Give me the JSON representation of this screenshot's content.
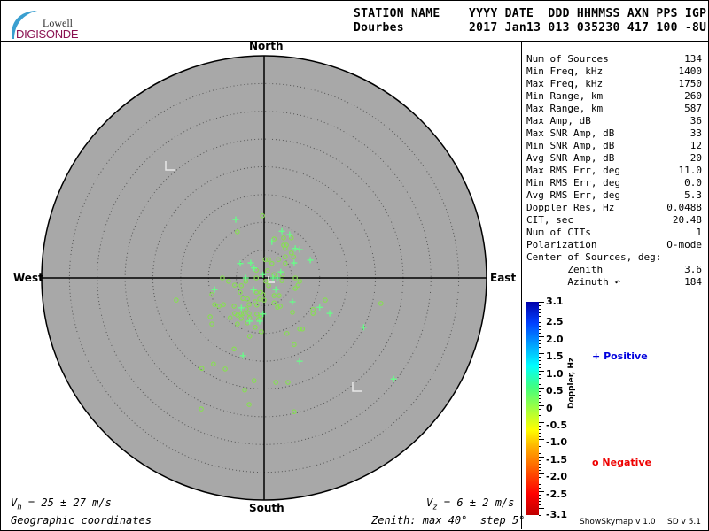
{
  "logo": {
    "top": "Lowell",
    "bottom": "DIGISONDE"
  },
  "header": {
    "labels": "STATION NAME    YYYY DATE  DDD HHMMSS AXN PPS IGP",
    "values": "Dourbes         2017 Jan13 013 035230 417 100 -8U"
  },
  "stats": [
    {
      "label": "Num of Sources",
      "value": "134"
    },
    {
      "label": "Min Freq, kHz",
      "value": "1400"
    },
    {
      "label": "Max Freq, kHz",
      "value": "1750"
    },
    {
      "label": "Min Range, km",
      "value": "260"
    },
    {
      "label": "Max Range, km",
      "value": "587"
    },
    {
      "label": "Max Amp, dB",
      "value": "36"
    },
    {
      "label": "Max SNR Amp, dB",
      "value": "33"
    },
    {
      "label": "Min SNR Amp, dB",
      "value": "12"
    },
    {
      "label": "Avg SNR Amp, dB",
      "value": "20"
    },
    {
      "label": "Max RMS Err, deg",
      "value": "11.0"
    },
    {
      "label": "Min RMS Err, deg",
      "value": "0.0"
    },
    {
      "label": "Avg RMS Err, deg",
      "value": "5.3"
    },
    {
      "label": "Doppler Res, Hz",
      "value": "0.0488"
    },
    {
      "label": "CIT, sec",
      "value": "20.48"
    },
    {
      "label": "Num of CITs",
      "value": "1"
    },
    {
      "label": "Polarization",
      "value": "O-mode"
    },
    {
      "label": "Center of Sources, deg:",
      "value": ""
    },
    {
      "label": "       Zenith",
      "value": "3.6"
    },
    {
      "label": "       Azimuth ↶",
      "value": "184"
    }
  ],
  "footer": {
    "vh": "= 25 ± 27 m/s",
    "vh_sym": "V",
    "vh_sub": "h",
    "vz": "= 6 ± 2 m/s",
    "vz_sym": "V",
    "vz_sub": "z",
    "coords": "Geographic coordinates",
    "zenith": "Zenith: max 40°  step 5°",
    "version1": "ShowSkymap v 1.0",
    "version2": "SD v 5.1"
  },
  "legend": {
    "positive": "Positive",
    "negative": "Negative",
    "positive_color": "#0000dd",
    "negative_color": "#ee0000"
  },
  "chart_data": {
    "type": "scatter",
    "projection": "polar skymap, zenith angle radial, azimuth from North clockwise",
    "directions": {
      "north": "North",
      "south": "South",
      "east": "East",
      "west": "West"
    },
    "zenith_max_deg": 40,
    "zenith_step_deg": 5,
    "units": "x = east offset (deg zenith), y = north offset (deg zenith)",
    "colors": {
      "disk": "#a8a8a8",
      "positive_point": "#66ff88",
      "negative_point": "#88dd55"
    },
    "colorbar": {
      "label": "Doppler, Hz",
      "range": [
        -3.1,
        3.1
      ],
      "ticks": [
        "3.1",
        "2.5",
        "2.0",
        "1.5",
        "1.0",
        "0.5",
        "0",
        "-0.5",
        "-1.0",
        "-1.5",
        "-2.0",
        "-2.5",
        "-3.1"
      ],
      "tick_values": [
        3.1,
        2.5,
        2.0,
        1.5,
        1.0,
        0.5,
        0,
        -0.5,
        -1.0,
        -1.5,
        -2.0,
        -2.5,
        -3.1
      ]
    },
    "positive": [
      [
        -5.1,
        10.5
      ],
      [
        3.2,
        8.4
      ],
      [
        4.6,
        7.8
      ],
      [
        1.4,
        6.5
      ],
      [
        5.6,
        5.3
      ],
      [
        6.4,
        5.1
      ],
      [
        8.3,
        3.2
      ],
      [
        5.4,
        2.7
      ],
      [
        -4.3,
        2.6
      ],
      [
        -2.4,
        2.7
      ],
      [
        -1.8,
        1.8
      ],
      [
        -0.2,
        0.6
      ],
      [
        3.0,
        1.1
      ],
      [
        -3.3,
        0
      ],
      [
        1.6,
        0
      ],
      [
        2.4,
        0
      ],
      [
        -8.9,
        -2.1
      ],
      [
        -1.9,
        -2.1
      ],
      [
        2.1,
        -2.1
      ],
      [
        5.1,
        -4.3
      ],
      [
        10.0,
        -5.3
      ],
      [
        11.8,
        -6.4
      ],
      [
        -4.1,
        -5.4
      ],
      [
        -2.6,
        -7.8
      ],
      [
        -0.8,
        -7.8
      ],
      [
        -0.2,
        -6.5
      ],
      [
        -3.8,
        -14.0
      ],
      [
        17.9,
        -8.9
      ],
      [
        23.3,
        -18.2
      ],
      [
        6.4,
        -15.0
      ]
    ],
    "negative": [
      [
        -0.3,
        11.2
      ],
      [
        -4.8,
        8.3
      ],
      [
        1.8,
        7.0
      ],
      [
        3.5,
        7.2
      ],
      [
        4.9,
        7.2
      ],
      [
        3.5,
        5.9
      ],
      [
        4.0,
        5.9
      ],
      [
        3.8,
        5.3
      ],
      [
        4.9,
        4.5
      ],
      [
        5.3,
        3.8
      ],
      [
        3.8,
        3.8
      ],
      [
        2.6,
        3.3
      ],
      [
        0.8,
        3.3
      ],
      [
        0.2,
        3.3
      ],
      [
        1.4,
        2.6
      ],
      [
        3.8,
        2.6
      ],
      [
        -1.4,
        1.4
      ],
      [
        0.6,
        1.3
      ],
      [
        1.8,
        0.6
      ],
      [
        3.3,
        0.6
      ],
      [
        -7.5,
        0
      ],
      [
        -1.4,
        0
      ],
      [
        5.6,
        0
      ],
      [
        -6.4,
        -0.6
      ],
      [
        -3.3,
        -0.6
      ],
      [
        0.3,
        -0.6
      ],
      [
        3.2,
        -0.5
      ],
      [
        6.4,
        -0.6
      ],
      [
        6.1,
        -1.3
      ],
      [
        -5.3,
        -1.3
      ],
      [
        -4.1,
        -1.4
      ],
      [
        0.8,
        -1.4
      ],
      [
        5.6,
        -1.9
      ],
      [
        -4.3,
        -2.6
      ],
      [
        -1.4,
        -2.6
      ],
      [
        -0.6,
        -2.6
      ],
      [
        -0.2,
        -3.0
      ],
      [
        1.8,
        -3.2
      ],
      [
        2.7,
        -3.2
      ],
      [
        -15.8,
        -4.0
      ],
      [
        -9.4,
        -3.0
      ],
      [
        -3.8,
        -3.7
      ],
      [
        -3.0,
        -3.8
      ],
      [
        -1.6,
        -4.3
      ],
      [
        -0.8,
        -3.8
      ],
      [
        0,
        -4.0
      ],
      [
        11.0,
        -4.0
      ],
      [
        -8.9,
        -4.8
      ],
      [
        -8.1,
        -5.1
      ],
      [
        -7.3,
        -4.8
      ],
      [
        -5.4,
        -5.1
      ],
      [
        -2.7,
        -4.8
      ],
      [
        -1.3,
        -4.9
      ],
      [
        1.8,
        -4.5
      ],
      [
        2.4,
        -5.3
      ],
      [
        2.9,
        -5.1
      ],
      [
        -3.2,
        -5.6
      ],
      [
        -9.7,
        -7.0
      ],
      [
        -6.1,
        -7.2
      ],
      [
        -5.3,
        -6.4
      ],
      [
        -4.8,
        -6.7
      ],
      [
        -4.1,
        -6.4
      ],
      [
        -3.7,
        -6.4
      ],
      [
        -2.7,
        -6.4
      ],
      [
        -1.3,
        -6.5
      ],
      [
        -0.6,
        -6.9
      ],
      [
        -4.1,
        -7.3
      ],
      [
        -2.6,
        -7.2
      ],
      [
        -3.0,
        -8.1
      ],
      [
        -4.8,
        -8.3
      ],
      [
        -9.4,
        -8.3
      ],
      [
        5.1,
        -6.2
      ],
      [
        8.8,
        -6.4
      ],
      [
        -1.0,
        -7.5
      ],
      [
        -1.6,
        -8.9
      ],
      [
        -0.5,
        -9.7
      ],
      [
        4.1,
        -10.0
      ],
      [
        6.9,
        -9.2
      ],
      [
        -2.6,
        -10.5
      ],
      [
        5.4,
        -12.0
      ],
      [
        -9.1,
        -15.5
      ],
      [
        -11.2,
        -16.3
      ],
      [
        -5.4,
        -12.8
      ],
      [
        -1.8,
        -18.5
      ],
      [
        2.1,
        -18.8
      ],
      [
        4.3,
        -18.8
      ],
      [
        -3.5,
        -20.2
      ],
      [
        -7.0,
        -16.4
      ],
      [
        -11.3,
        -23.6
      ],
      [
        -2.7,
        -22.8
      ],
      [
        5.4,
        -24.1
      ],
      [
        21.0,
        -4.6
      ],
      [
        8.8,
        -5.7
      ],
      [
        6.4,
        -9.2
      ]
    ]
  }
}
